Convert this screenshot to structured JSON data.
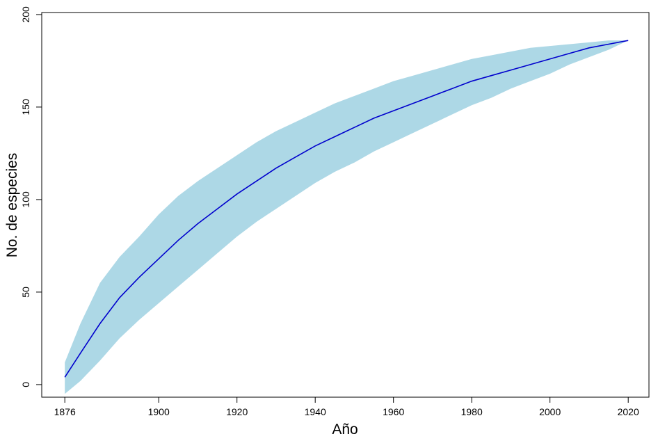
{
  "chart_data": {
    "type": "line-band",
    "x_label": "Año",
    "y_label": "No. de especies",
    "x": [
      1876,
      1880,
      1885,
      1890,
      1895,
      1900,
      1905,
      1910,
      1915,
      1920,
      1925,
      1930,
      1935,
      1940,
      1945,
      1950,
      1955,
      1960,
      1965,
      1970,
      1975,
      1980,
      1985,
      1990,
      1995,
      2000,
      2005,
      2010,
      2015,
      2020
    ],
    "values": [
      4,
      17,
      33,
      47,
      58,
      68,
      78,
      87,
      95,
      103,
      110,
      117,
      123,
      129,
      134,
      139,
      144,
      148,
      152,
      156,
      160,
      164,
      167,
      170,
      173,
      176,
      179,
      182,
      184,
      186
    ],
    "upper": [
      12,
      33,
      55,
      69,
      80,
      92,
      102,
      110,
      117,
      124,
      131,
      137,
      142,
      147,
      152,
      156,
      160,
      164,
      167,
      170,
      173,
      176,
      178,
      180,
      182,
      183,
      184,
      185,
      186,
      186
    ],
    "lower": [
      -5,
      2,
      13,
      25,
      35,
      44,
      53,
      62,
      71,
      80,
      88,
      95,
      102,
      109,
      115,
      120,
      126,
      131,
      136,
      141,
      146,
      151,
      155,
      160,
      164,
      168,
      173,
      177,
      181,
      186
    ],
    "color": "#0000cd",
    "band_color": "#add8e6",
    "xlim": [
      1870.1,
      2025.3
    ],
    "ylim": [
      -6.8,
      201.1
    ],
    "xticks": [
      1876,
      1900,
      1920,
      1940,
      1960,
      1980,
      2000,
      2020
    ],
    "yticks": [
      0,
      50,
      100,
      150,
      200
    ]
  }
}
